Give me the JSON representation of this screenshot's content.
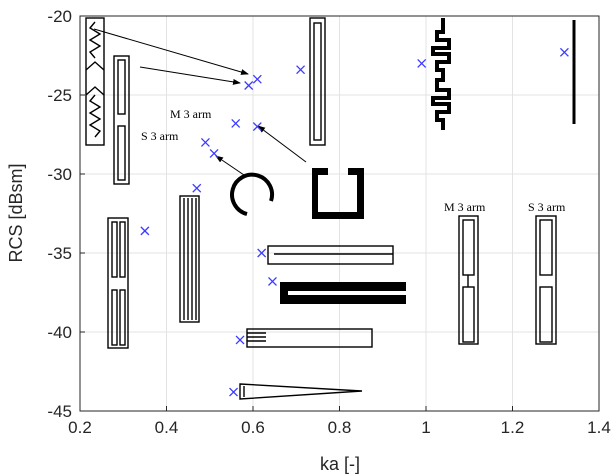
{
  "chart_data": {
    "type": "scatter",
    "title": "",
    "xlabel": "ka [-]",
    "ylabel": "RCS [dBsm]",
    "xlim": [
      0.2,
      1.4
    ],
    "ylim": [
      -45,
      -20
    ],
    "xticks": [
      0.2,
      0.4,
      0.6,
      0.8,
      1.0,
      1.2,
      1.4
    ],
    "xtick_labels": [
      "0.2",
      "0.4",
      "0.6",
      "0.8",
      "1",
      "1.2",
      "1.4"
    ],
    "yticks": [
      -45,
      -40,
      -35,
      -30,
      -25,
      -20
    ],
    "ytick_labels": [
      "-45",
      "-40",
      "-35",
      "-30",
      "-25",
      "-20"
    ],
    "grid": true,
    "marker": "x",
    "marker_color": "#3b3bff",
    "x": [
      0.35,
      0.47,
      0.49,
      0.51,
      0.555,
      0.56,
      0.57,
      0.59,
      0.61,
      0.61,
      0.62,
      0.645,
      0.71,
      0.99,
      1.32
    ],
    "y": [
      -33.6,
      -30.9,
      -28.0,
      -28.7,
      -43.8,
      -26.8,
      -40.5,
      -24.4,
      -24.0,
      -27.0,
      -35.0,
      -36.8,
      -23.4,
      -23.0,
      -22.3
    ],
    "annotations": [
      "M 3 arm",
      "S 3 arm",
      "M 3 arm",
      "S 3 arm"
    ]
  }
}
